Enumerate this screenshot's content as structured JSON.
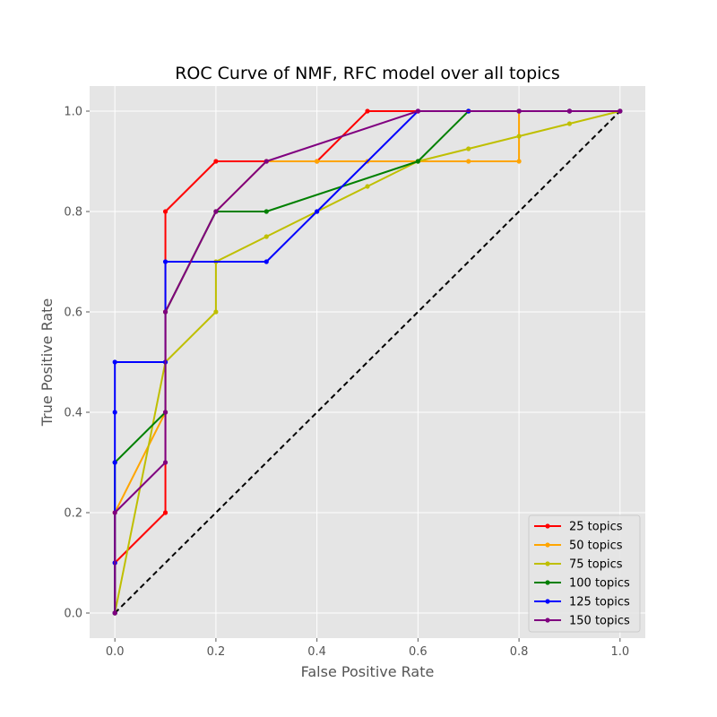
{
  "chart_data": {
    "type": "line",
    "title": "ROC Curve of NMF, RFC model over all topics",
    "xlabel": "False Positive Rate",
    "ylabel": "True Positive Rate",
    "xlim": [
      -0.05,
      1.05
    ],
    "ylim": [
      -0.05,
      1.05
    ],
    "xticks": [
      "0.0",
      "0.2",
      "0.4",
      "0.6",
      "0.8",
      "1.0"
    ],
    "yticks": [
      "0.0",
      "0.2",
      "0.4",
      "0.6",
      "0.8",
      "1.0"
    ],
    "grid": true,
    "legend_position": "lower-right",
    "diagonal": {
      "x": [
        0,
        1
      ],
      "y": [
        0,
        1
      ],
      "color": "#000000",
      "style": "dashed"
    },
    "series": [
      {
        "name": "25 topics",
        "color": "#ff0000",
        "x": [
          0,
          0,
          0.1,
          0.1,
          0.2,
          0.3,
          0.4,
          0.5,
          0.6,
          0.7,
          0.8,
          0.9,
          1.0
        ],
        "y": [
          0,
          0.1,
          0.2,
          0.8,
          0.9,
          0.9,
          0.9,
          1.0,
          1.0,
          1.0,
          1.0,
          1.0,
          1.0
        ]
      },
      {
        "name": "50 topics",
        "color": "#ffa500",
        "x": [
          0,
          0,
          0.1,
          0.1,
          0.2,
          0.3,
          0.4,
          0.5,
          0.6,
          0.7,
          0.8,
          0.8,
          0.9,
          1.0
        ],
        "y": [
          0,
          0.2,
          0.4,
          0.6,
          0.8,
          0.9,
          0.9,
          0.9,
          0.9,
          0.9,
          0.9,
          1.0,
          1.0,
          1.0
        ]
      },
      {
        "name": "75 topics",
        "color": "#bfbf00",
        "x": [
          0,
          0.1,
          0.2,
          0.2,
          0.3,
          0.4,
          0.5,
          0.6,
          0.7,
          0.8,
          0.9,
          1.0
        ],
        "y": [
          0,
          0.5,
          0.6,
          0.7,
          0.75,
          0.8,
          0.85,
          0.9,
          0.925,
          0.95,
          0.975,
          1.0
        ]
      },
      {
        "name": "100 topics",
        "color": "#008000",
        "x": [
          0,
          0,
          0.1,
          0.1,
          0.2,
          0.3,
          0.6,
          0.7,
          0.8,
          0.9,
          1.0
        ],
        "y": [
          0,
          0.3,
          0.4,
          0.6,
          0.8,
          0.8,
          0.9,
          1.0,
          1.0,
          1.0,
          1.0
        ]
      },
      {
        "name": "125 topics",
        "color": "#0000ff",
        "x": [
          0,
          0,
          0,
          0,
          0,
          0.1,
          0.1,
          0.3,
          0.4,
          0.6,
          0.7,
          0.8,
          0.9,
          1.0
        ],
        "y": [
          0,
          0.1,
          0.3,
          0.4,
          0.5,
          0.5,
          0.7,
          0.7,
          0.8,
          1.0,
          1.0,
          1.0,
          1.0,
          1.0
        ]
      },
      {
        "name": "150 topics",
        "color": "#800080",
        "x": [
          0,
          0,
          0.1,
          0.1,
          0.1,
          0.2,
          0.3,
          0.6,
          0.8,
          0.9,
          1.0
        ],
        "y": [
          0,
          0.2,
          0.3,
          0.4,
          0.6,
          0.8,
          0.9,
          1.0,
          1.0,
          1.0,
          1.0
        ]
      }
    ]
  }
}
